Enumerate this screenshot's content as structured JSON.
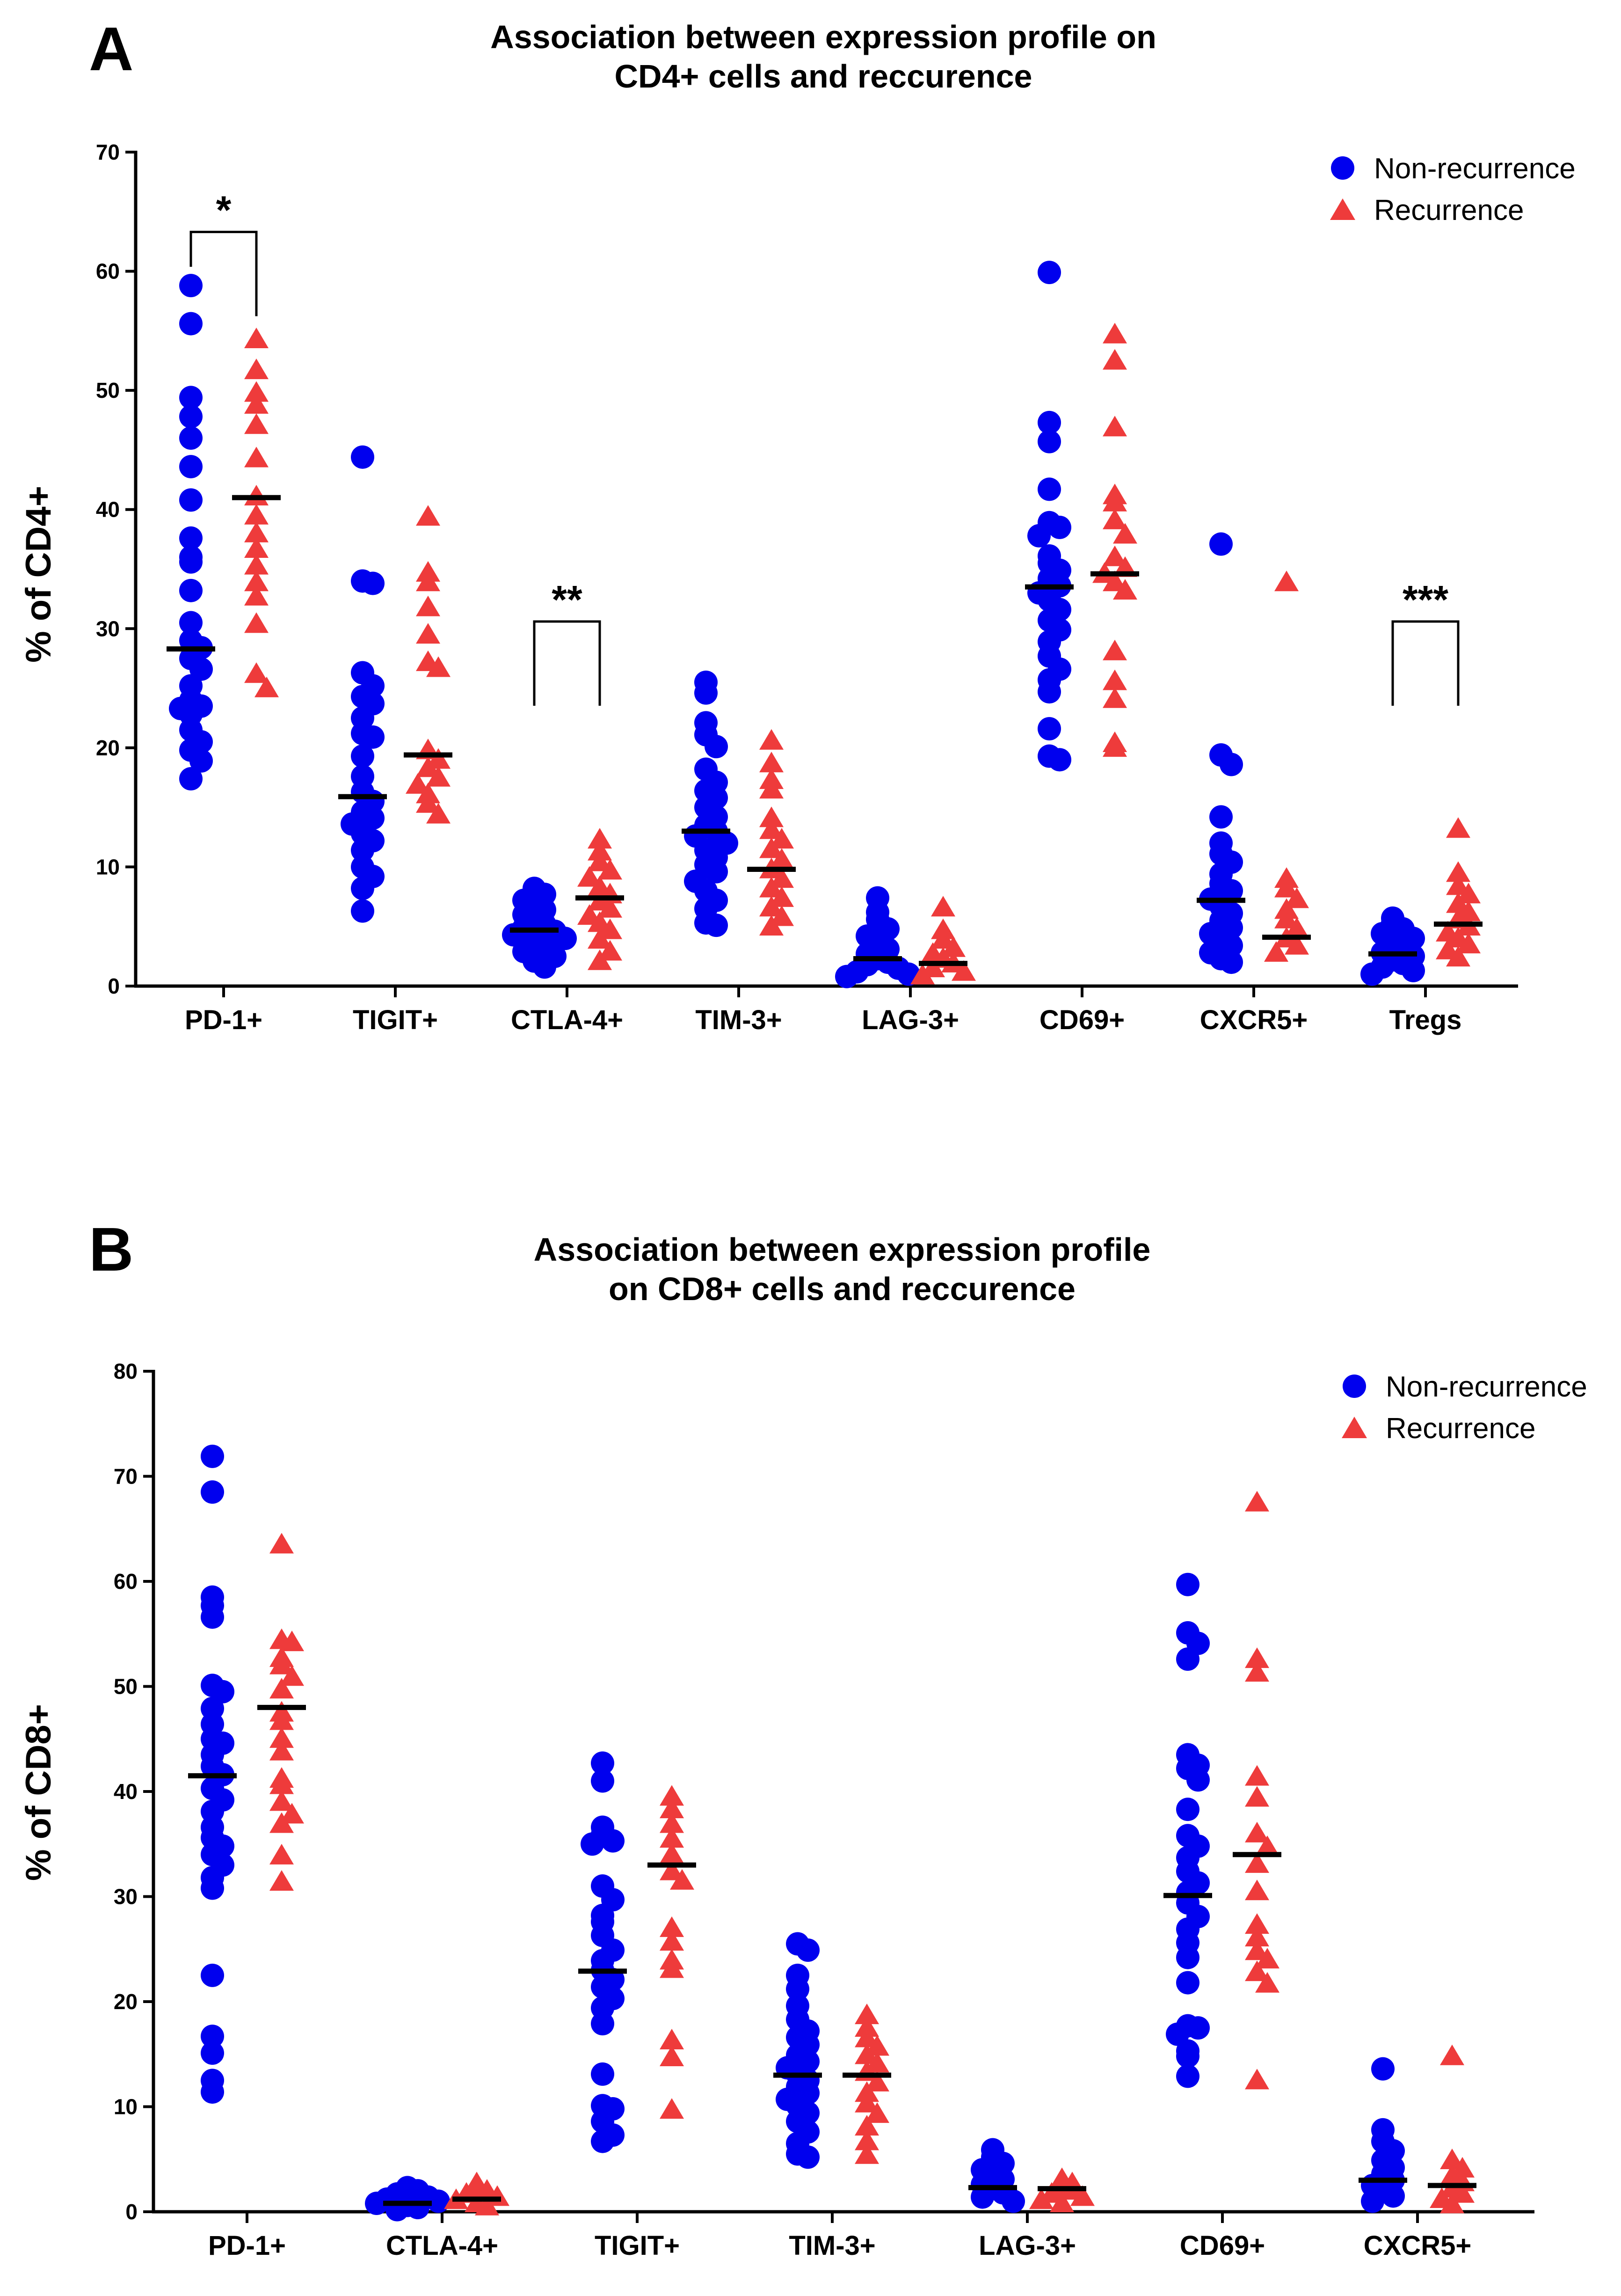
{
  "chart_data": [
    {
      "panel_label": "A",
      "type": "scatter",
      "title": "Association between expression profile on",
      "title_line2": "CD4+ cells and reccurence",
      "ylabel": "% of CD4+",
      "xlabel": "",
      "ylim": [
        0,
        70
      ],
      "yticks": [
        "0",
        "10",
        "20",
        "30",
        "40",
        "50",
        "60",
        "70"
      ],
      "categories": [
        "PD-1+",
        "TIGIT+",
        "CTLA-4+",
        "TIM-3+",
        "LAG-3+",
        "CD69+",
        "CXCR5+",
        "Tregs"
      ],
      "legend": {
        "placement": "top-right",
        "entries": [
          "Non-recurrence",
          "Recurrence"
        ]
      },
      "series": [
        {
          "name": "Non-recurrence",
          "marker": "circle",
          "color": "#0000ee",
          "medians": [
            28.3,
            15.9,
            4.7,
            13.0,
            2.3,
            33.5,
            7.2,
            2.7
          ],
          "values": [
            [
              58.8,
              55.6,
              49.4,
              47.8,
              46.0,
              43.6,
              40.8,
              37.6,
              36.0,
              35.6,
              33.2,
              30.5,
              29.0,
              28.4,
              27.5,
              26.6,
              25.2,
              24.0,
              23.5,
              23.3,
              22.8,
              21.5,
              20.5,
              19.8,
              18.9,
              17.4
            ],
            [
              44.4,
              34.0,
              33.8,
              26.3,
              25.2,
              24.3,
              23.7,
              22.5,
              21.2,
              20.9,
              19.3,
              17.6,
              16.3,
              15.5,
              14.6,
              14.1,
              13.6,
              12.8,
              12.2,
              11.4,
              10.0,
              9.2,
              8.2,
              6.3
            ],
            [
              8.2,
              7.7,
              7.2,
              6.8,
              6.4,
              6.0,
              5.6,
              5.2,
              4.9,
              4.6,
              4.3,
              4.0,
              3.7,
              3.3,
              2.9,
              2.5,
              2.1,
              1.6
            ],
            [
              25.5,
              24.6,
              22.1,
              21.1,
              20.1,
              18.2,
              17.1,
              16.4,
              15.8,
              15.0,
              14.2,
              13.5,
              13.0,
              12.6,
              12.0,
              11.4,
              10.8,
              10.2,
              9.6,
              8.8,
              8.0,
              7.2,
              6.5,
              5.3,
              5.1
            ],
            [
              7.4,
              6.2,
              5.6,
              4.8,
              4.2,
              3.6,
              3.1,
              2.7,
              2.3,
              2.0,
              1.8,
              1.5,
              1.2,
              1.0,
              0.8
            ],
            [
              59.9,
              47.3,
              45.7,
              41.7,
              38.9,
              38.5,
              37.8,
              36.1,
              35.5,
              34.9,
              34.2,
              33.6,
              33.0,
              32.4,
              31.6,
              30.7,
              29.9,
              28.9,
              27.7,
              26.6,
              25.7,
              24.7,
              21.6,
              19.3,
              19.0
            ],
            [
              37.1,
              19.4,
              18.6,
              14.2,
              12.0,
              11.1,
              10.4,
              9.4,
              8.6,
              8.0,
              7.3,
              6.7,
              6.1,
              5.5,
              4.9,
              4.4,
              3.9,
              3.4,
              2.8,
              2.3,
              2.0
            ],
            [
              5.7,
              5.3,
              4.8,
              4.4,
              4.0,
              3.6,
              3.2,
              2.8,
              2.5,
              2.2,
              1.9,
              1.6,
              1.3,
              1.0
            ]
          ]
        },
        {
          "name": "Recurrence",
          "marker": "triangle",
          "color": "#ee3b3b",
          "medians": [
            41.0,
            19.4,
            7.4,
            9.8,
            1.9,
            34.6,
            4.1,
            5.2
          ],
          "values": [
            [
              54.2,
              51.6,
              49.7,
              48.7,
              47.0,
              44.2,
              41.0,
              39.4,
              37.9,
              36.6,
              35.2,
              33.8,
              32.6,
              30.3,
              26.1,
              24.9
            ],
            [
              39.3,
              34.6,
              33.8,
              31.7,
              29.4,
              27.1,
              26.6,
              19.7,
              18.9,
              18.2,
              17.4,
              16.8,
              16.0,
              15.2,
              14.3
            ],
            [
              12.2,
              11.2,
              10.3,
              9.6,
              9.0,
              8.2,
              7.6,
              7.0,
              6.4,
              5.8,
              5.2,
              4.6,
              3.8,
              2.8,
              2.0
            ],
            [
              20.5,
              18.6,
              17.2,
              16.4,
              14.0,
              13.0,
              12.2,
              11.4,
              10.5,
              9.7,
              8.9,
              8.1,
              7.3,
              6.5,
              5.7,
              4.9
            ],
            [
              6.5,
              4.6,
              3.8,
              3.1,
              2.6,
              2.2,
              1.8,
              1.4,
              1.1,
              0.8
            ],
            [
              54.6,
              52.4,
              46.8,
              41.1,
              40.5,
              39.0,
              37.8,
              35.9,
              35.0,
              34.5,
              33.8,
              33.1,
              28.0,
              25.5,
              24.0,
              20.3,
              19.9
            ],
            [
              33.8,
              8.9,
              8.1,
              7.2,
              6.3,
              5.5,
              4.7,
              3.9,
              3.3,
              2.7
            ],
            [
              13.1,
              9.4,
              8.3,
              7.6,
              6.8,
              6.1,
              5.5,
              4.9,
              4.4,
              3.9,
              3.4,
              2.9,
              2.3
            ]
          ]
        }
      ],
      "significance": [
        {
          "category_index": 0,
          "label": "*",
          "y": 63.3
        },
        {
          "category_index": 2,
          "label": "**",
          "y": 30.6
        },
        {
          "category_index": 7,
          "label": "***",
          "y": 30.6
        }
      ]
    },
    {
      "panel_label": "B",
      "type": "scatter",
      "title": "Association between expression profile",
      "title_line2": "on CD8+ cells and reccurence",
      "ylabel": "% of CD8+",
      "xlabel": "",
      "ylim": [
        0,
        80
      ],
      "yticks": [
        "0",
        "10",
        "20",
        "30",
        "40",
        "50",
        "60",
        "70",
        "80"
      ],
      "categories": [
        "PD-1+",
        "CTLA-4+",
        "TIGIT+",
        "TIM-3+",
        "LAG-3+",
        "CD69+",
        "CXCR5+"
      ],
      "legend": {
        "placement": "top-right",
        "entries": [
          "Non-recurrence",
          "Recurrence"
        ]
      },
      "series": [
        {
          "name": "Non-recurrence",
          "marker": "circle",
          "color": "#0000ee",
          "medians": [
            41.5,
            0.8,
            22.9,
            13.0,
            2.3,
            30.1,
            3.0
          ],
          "values": [
            [
              71.9,
              68.5,
              58.5,
              57.7,
              56.6,
              50.1,
              49.5,
              47.9,
              46.4,
              45.0,
              44.6,
              43.5,
              42.4,
              41.6,
              40.3,
              39.2,
              38.1,
              36.6,
              35.6,
              34.8,
              34.0,
              33.0,
              31.8,
              30.8,
              22.5,
              16.7,
              15.1,
              12.5,
              11.4
            ],
            [
              2.3,
              2.0,
              1.7,
              1.4,
              1.2,
              1.0,
              0.8,
              0.6,
              0.4,
              0.2
            ],
            [
              42.7,
              41.0,
              36.6,
              35.9,
              35.3,
              35.0,
              31.0,
              29.7,
              28.2,
              27.6,
              26.3,
              24.9,
              23.9,
              23.0,
              22.1,
              21.4,
              20.3,
              19.4,
              17.9,
              13.1,
              10.1,
              9.8,
              8.6,
              7.3,
              6.7
            ],
            [
              25.5,
              24.9,
              22.5,
              21.2,
              19.6,
              18.3,
              17.2,
              16.6,
              15.9,
              14.9,
              14.3,
              13.7,
              13.1,
              12.5,
              11.9,
              11.3,
              10.7,
              10.1,
              9.4,
              8.6,
              7.6,
              6.5,
              5.5,
              5.2
            ],
            [
              5.9,
              5.2,
              4.6,
              4.0,
              3.5,
              3.1,
              2.6,
              2.2,
              1.8,
              1.4,
              1.0
            ],
            [
              59.7,
              55.1,
              54.1,
              52.6,
              43.5,
              42.5,
              42.2,
              41.1,
              38.3,
              35.8,
              34.8,
              33.7,
              32.4,
              31.3,
              30.4,
              29.4,
              28.1,
              26.9,
              25.6,
              24.2,
              21.8,
              17.7,
              17.5,
              16.9,
              15.3,
              14.8,
              12.9
            ],
            [
              13.6,
              7.8,
              6.7,
              5.8,
              4.9,
              4.2,
              3.6,
              3.0,
              2.5,
              2.0,
              1.5,
              1.0
            ]
          ]
        },
        {
          "name": "Recurrence",
          "marker": "triangle",
          "color": "#ee3b3b",
          "medians": [
            48.0,
            1.2,
            33.0,
            13.0,
            2.2,
            34.0,
            2.5
          ],
          "values": [
            [
              63.4,
              54.3,
              54.1,
              52.6,
              51.9,
              50.8,
              49.6,
              47.4,
              46.6,
              44.9,
              43.7,
              41.1,
              40.5,
              38.9,
              37.7,
              36.8,
              33.8,
              31.3
            ],
            [
              2.6,
              2.2,
              1.9,
              1.6,
              1.3,
              1.0,
              0.7,
              0.4
            ],
            [
              39.4,
              38.2,
              36.8,
              35.4,
              33.9,
              32.3,
              31.4,
              26.9,
              25.6,
              23.8,
              23.0,
              16.2,
              14.6,
              9.6
            ],
            [
              18.6,
              17.4,
              16.4,
              15.6,
              14.8,
              14.0,
              13.2,
              12.2,
              11.2,
              10.2,
              9.2,
              8.0,
              6.6,
              5.3
            ],
            [
              3.0,
              2.6,
              2.2,
              1.9,
              1.6,
              1.3,
              1.0,
              0.7
            ],
            [
              67.4,
              52.5,
              51.2,
              41.3,
              39.3,
              35.9,
              34.6,
              33.0,
              30.4,
              27.2,
              26.0,
              24.7,
              23.9,
              22.7,
              21.6,
              12.4
            ],
            [
              14.7,
              4.8,
              4.0,
              3.3,
              2.7,
              2.1,
              1.6,
              1.1,
              0.6
            ]
          ]
        }
      ],
      "significance": []
    }
  ]
}
